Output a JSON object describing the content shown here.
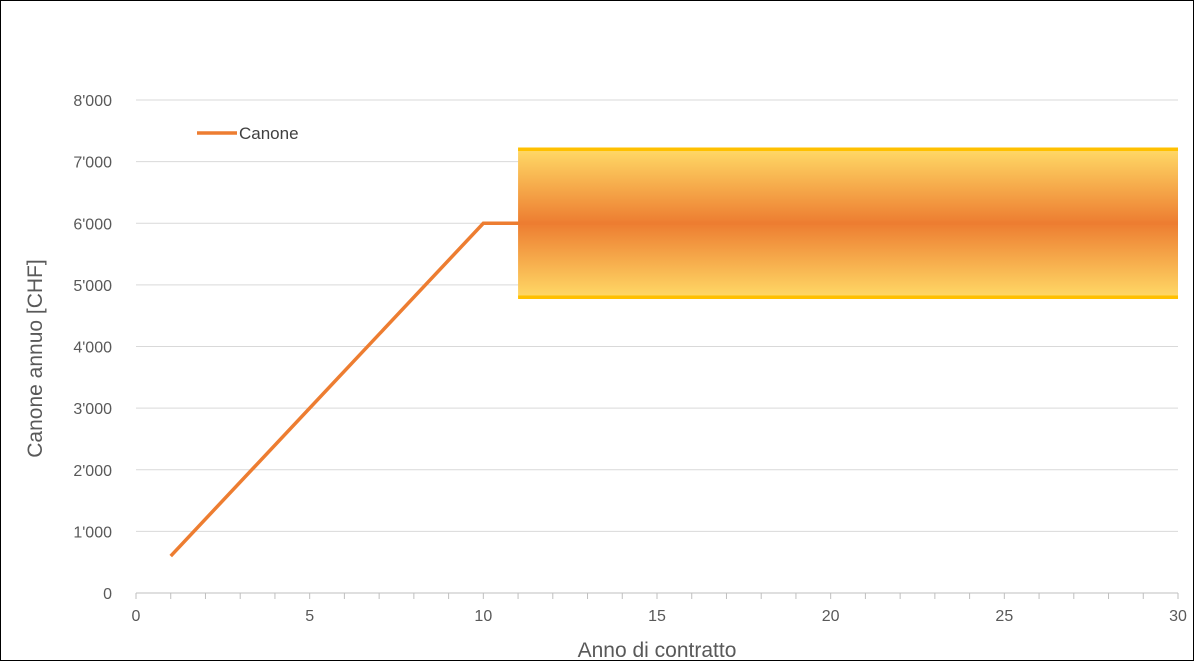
{
  "chart_data": {
    "type": "line",
    "title": "",
    "xlabel": "Anno di contratto",
    "ylabel": "Canone annuo [CHF]",
    "xlim": [
      0,
      30
    ],
    "ylim": [
      0,
      8000
    ],
    "x_ticks": [
      0,
      5,
      10,
      15,
      20,
      25,
      30
    ],
    "x_tick_labels": [
      "0",
      "5",
      "10",
      "15",
      "20",
      "25",
      "30"
    ],
    "y_ticks": [
      0,
      1000,
      2000,
      3000,
      4000,
      5000,
      6000,
      7000,
      8000
    ],
    "y_tick_labels": [
      "0",
      "1'000",
      "2'000",
      "3'000",
      "4'000",
      "5'000",
      "6'000",
      "7'000",
      "8'000"
    ],
    "grid": "horizontal",
    "legend": {
      "position": "top-left",
      "entries": [
        "Canone"
      ]
    },
    "series": [
      {
        "name": "Canone",
        "color": "#ED7D31",
        "x": [
          1,
          10,
          30
        ],
        "y": [
          600,
          6000,
          6000
        ]
      }
    ],
    "band": {
      "x_range": [
        11,
        30
      ],
      "lower": 4800,
      "upper": 7200,
      "center": 6000,
      "edge_color": "#FFC000",
      "center_color": "#ED7D31",
      "outer_color": "#FFD966"
    }
  }
}
